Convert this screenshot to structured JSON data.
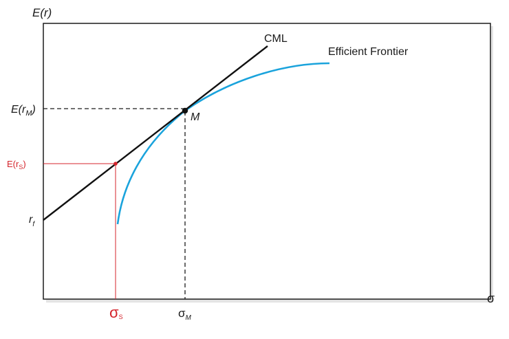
{
  "axes": {
    "y_label": "E(r)",
    "x_label": "σ"
  },
  "lines": {
    "cml_label": "CML",
    "frontier_label": "Efficient Frontier"
  },
  "points": {
    "market_label": "M",
    "rm_label": "E(r",
    "rm_sub": "M",
    "rm_close": ")",
    "rf_label": "r",
    "rf_sub": "f",
    "rs_label": "E(r",
    "rs_sub": "S",
    "rs_close": ")",
    "sigma_m_label": "σ",
    "sigma_m_sub": "M",
    "sigma_s_label": "σ",
    "sigma_s_sub": "S"
  },
  "colors": {
    "cml": "#111111",
    "frontier": "#1aa3dc",
    "highlight": "#d4232b",
    "frame": "#1a1a1a",
    "shadow": "#e2e2e2"
  }
}
